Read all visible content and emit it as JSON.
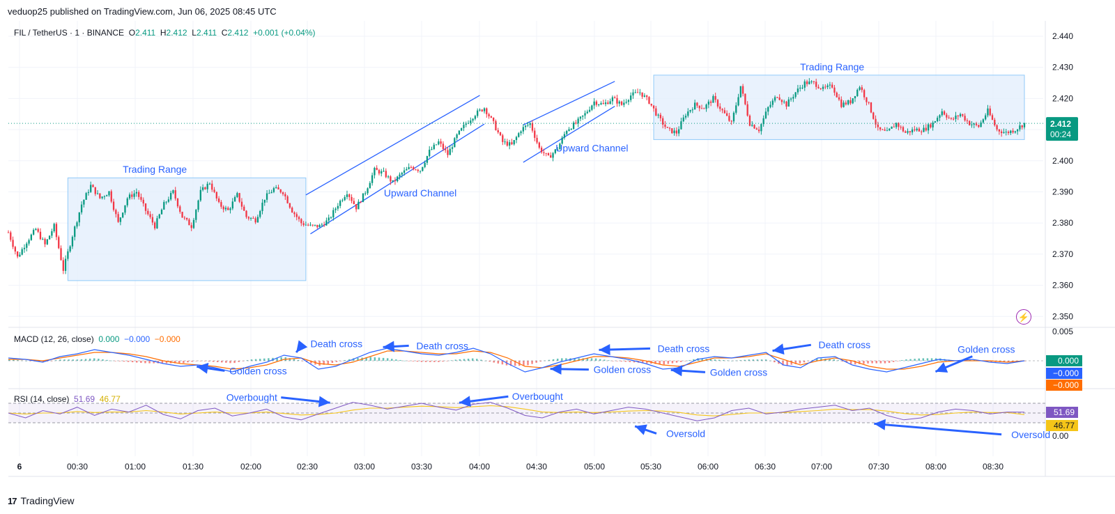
{
  "header": {
    "caption": "veduop25 published on TradingView.com, Jun 06, 2025 08:45 UTC",
    "symbol": "FIL / TetherUS · 1 · BINANCE",
    "o_label": "O",
    "o": "2.411",
    "h_label": "H",
    "h": "2.412",
    "l_label": "L",
    "l": "2.411",
    "c_label": "C",
    "c": "2.412",
    "change": "+0.001 (+0.04%)"
  },
  "footer": {
    "brand": "TradingView"
  },
  "colors": {
    "up": "#089981",
    "down": "#f23645",
    "annotation": "#2962ff",
    "range_fill": "#e3effc",
    "range_border": "#90caf9",
    "macd_line": "#2962ff",
    "signal_line": "#ff6d00",
    "rsi_line": "#7e57c2",
    "rsi_ma": "#f5c518"
  },
  "chart_data": [
    {
      "type": "candlestick",
      "title": "FIL / TetherUS · 1 · BINANCE",
      "ylim": [
        2.347,
        2.445
      ],
      "yticks": [
        "2.440",
        "2.430",
        "2.420",
        "2.410",
        "2.400",
        "2.390",
        "2.380",
        "2.370",
        "2.360",
        "2.350"
      ],
      "xticks": [
        "6",
        "00:30",
        "01:00",
        "01:30",
        "02:00",
        "02:30",
        "03:00",
        "03:30",
        "04:00",
        "04:30",
        "05:00",
        "05:30",
        "06:00",
        "06:30",
        "07:00",
        "07:30",
        "08:00",
        "08:30"
      ],
      "last_price_label": "2.412",
      "countdown_label": "00:24",
      "last_price": 2.412,
      "path_points": [
        [
          0,
          2.377
        ],
        [
          4,
          2.369
        ],
        [
          8,
          2.374
        ],
        [
          12,
          2.378
        ],
        [
          16,
          2.373
        ],
        [
          20,
          2.379
        ],
        [
          24,
          2.365
        ],
        [
          28,
          2.376
        ],
        [
          32,
          2.386
        ],
        [
          36,
          2.392
        ],
        [
          40,
          2.388
        ],
        [
          44,
          2.39
        ],
        [
          48,
          2.38
        ],
        [
          52,
          2.388
        ],
        [
          56,
          2.39
        ],
        [
          60,
          2.384
        ],
        [
          64,
          2.379
        ],
        [
          68,
          2.386
        ],
        [
          72,
          2.39
        ],
        [
          76,
          2.382
        ],
        [
          80,
          2.379
        ],
        [
          84,
          2.39
        ],
        [
          88,
          2.393
        ],
        [
          92,
          2.386
        ],
        [
          96,
          2.384
        ],
        [
          100,
          2.389
        ],
        [
          104,
          2.382
        ],
        [
          108,
          2.381
        ],
        [
          112,
          2.388
        ],
        [
          116,
          2.391
        ],
        [
          120,
          2.39
        ],
        [
          124,
          2.384
        ],
        [
          128,
          2.38
        ],
        [
          132,
          2.379
        ],
        [
          136,
          2.379
        ],
        [
          140,
          2.381
        ],
        [
          144,
          2.386
        ],
        [
          148,
          2.39
        ],
        [
          152,
          2.385
        ],
        [
          156,
          2.39
        ],
        [
          160,
          2.397
        ],
        [
          164,
          2.396
        ],
        [
          168,
          2.393
        ],
        [
          172,
          2.396
        ],
        [
          176,
          2.398
        ],
        [
          180,
          2.397
        ],
        [
          184,
          2.403
        ],
        [
          188,
          2.406
        ],
        [
          192,
          2.402
        ],
        [
          196,
          2.408
        ],
        [
          200,
          2.412
        ],
        [
          204,
          2.415
        ],
        [
          208,
          2.417
        ],
        [
          212,
          2.412
        ],
        [
          216,
          2.406
        ],
        [
          220,
          2.405
        ],
        [
          224,
          2.41
        ],
        [
          228,
          2.412
        ],
        [
          232,
          2.404
        ],
        [
          236,
          2.401
        ],
        [
          240,
          2.404
        ],
        [
          244,
          2.41
        ],
        [
          248,
          2.412
        ],
        [
          252,
          2.415
        ],
        [
          256,
          2.419
        ],
        [
          260,
          2.418
        ],
        [
          264,
          2.42
        ],
        [
          268,
          2.418
        ],
        [
          272,
          2.421
        ],
        [
          276,
          2.422
        ],
        [
          280,
          2.419
        ],
        [
          284,
          2.414
        ],
        [
          288,
          2.41
        ],
        [
          292,
          2.409
        ],
        [
          296,
          2.415
        ],
        [
          300,
          2.418
        ],
        [
          304,
          2.417
        ],
        [
          308,
          2.42
        ],
        [
          312,
          2.416
        ],
        [
          316,
          2.412
        ],
        [
          320,
          2.424
        ],
        [
          324,
          2.412
        ],
        [
          328,
          2.41
        ],
        [
          332,
          2.417
        ],
        [
          336,
          2.421
        ],
        [
          340,
          2.418
        ],
        [
          344,
          2.422
        ],
        [
          348,
          2.425
        ],
        [
          352,
          2.425
        ],
        [
          356,
          2.423
        ],
        [
          360,
          2.424
        ],
        [
          364,
          2.418
        ],
        [
          368,
          2.419
        ],
        [
          372,
          2.424
        ],
        [
          376,
          2.418
        ],
        [
          380,
          2.41
        ],
        [
          384,
          2.409
        ],
        [
          388,
          2.412
        ],
        [
          392,
          2.409
        ],
        [
          396,
          2.41
        ],
        [
          400,
          2.41
        ],
        [
          404,
          2.412
        ],
        [
          408,
          2.416
        ],
        [
          412,
          2.413
        ],
        [
          416,
          2.415
        ],
        [
          420,
          2.412
        ],
        [
          424,
          2.411
        ],
        [
          428,
          2.416
        ],
        [
          432,
          2.41
        ],
        [
          436,
          2.409
        ],
        [
          440,
          2.41
        ],
        [
          444,
          2.412
        ]
      ],
      "shapes": [
        {
          "kind": "rect",
          "name": "trading-range-left",
          "x1": 26,
          "x2": 130,
          "y1": 2.3615,
          "y2": 2.3945
        },
        {
          "kind": "rect",
          "name": "trading-range-right",
          "x1": 282,
          "x2": 444,
          "y1": 2.4068,
          "y2": 2.4275
        },
        {
          "kind": "line",
          "name": "channel-1-upper",
          "x1": 130,
          "y1": 2.389,
          "x2": 206,
          "y2": 2.421
        },
        {
          "kind": "line",
          "name": "channel-1-lower",
          "x1": 132,
          "y1": 2.3765,
          "x2": 208,
          "y2": 2.4118
        },
        {
          "kind": "line",
          "name": "channel-2-upper",
          "x1": 225,
          "y1": 2.4115,
          "x2": 265,
          "y2": 2.4255
        },
        {
          "kind": "line",
          "name": "channel-2-lower",
          "x1": 225,
          "y1": 2.3995,
          "x2": 265,
          "y2": 2.4175
        }
      ],
      "annotations": [
        {
          "text": "Trading Range",
          "x": 64,
          "y": 2.3962
        },
        {
          "text": "Upward Channel",
          "x": 180,
          "y": 2.3885
        },
        {
          "text": "Upward Channel",
          "x": 255,
          "y": 2.403
        },
        {
          "text": "Trading Range",
          "x": 360,
          "y": 2.429
        }
      ]
    },
    {
      "type": "line",
      "title": "MACD (12, 26, close)",
      "legend_values": [
        "0.000",
        "−0.000",
        "−0.000"
      ],
      "ytick": "0.005",
      "badges": [
        "0.000",
        "−0.000",
        "−0.000"
      ],
      "series": [
        {
          "name": "MACD",
          "values": [
            0.2,
            0.1,
            -0.1,
            0.3,
            0.5,
            0.8,
            0.6,
            0.4,
            0.1,
            -0.2,
            -0.4,
            -0.3,
            -0.5,
            -0.8,
            -0.4,
            -0.1,
            0.4,
            0.2,
            -0.6,
            -0.4,
            0.1,
            0.6,
            0.9,
            0.7,
            0.5,
            0.4,
            0.6,
            0.9,
            0.5,
            -0.2,
            -0.8,
            -0.5,
            -0.1,
            0.2,
            0.5,
            0.3,
            0.1,
            -0.2,
            -0.6,
            -0.5,
            0.1,
            0.3,
            0.2,
            0.4,
            0.6,
            -0.3,
            -0.5,
            0.2,
            0.3,
            -0.3,
            -0.6,
            -0.8,
            -0.5,
            -0.2,
            0.1,
            0.0,
            0.1,
            -0.1,
            -0.2,
            0.0
          ]
        },
        {
          "name": "Signal",
          "values": [
            0.1,
            0.1,
            0.0,
            0.2,
            0.4,
            0.6,
            0.6,
            0.5,
            0.3,
            0.0,
            -0.2,
            -0.3,
            -0.4,
            -0.6,
            -0.5,
            -0.3,
            0.1,
            0.2,
            -0.2,
            -0.3,
            -0.1,
            0.3,
            0.7,
            0.7,
            0.6,
            0.5,
            0.5,
            0.7,
            0.6,
            0.2,
            -0.4,
            -0.5,
            -0.3,
            0.0,
            0.3,
            0.3,
            0.2,
            0.0,
            -0.3,
            -0.4,
            -0.1,
            0.2,
            0.2,
            0.3,
            0.5,
            0.1,
            -0.3,
            0.0,
            0.2,
            0.0,
            -0.4,
            -0.6,
            -0.6,
            -0.4,
            -0.1,
            0.0,
            0.0,
            0.0,
            -0.1,
            0.0
          ]
        }
      ],
      "annotations": [
        {
          "text": "Death cross",
          "x": 155,
          "y": 1.22,
          "ax": 136,
          "ay": 0.6
        },
        {
          "text": "Death cross",
          "x": 205,
          "y": 1.08,
          "ax": 177,
          "ay": 0.98
        },
        {
          "text": "Death cross",
          "x": 319,
          "y": 0.88,
          "ax": 279,
          "ay": 0.78
        },
        {
          "text": "Death cross",
          "x": 395,
          "y": 1.14,
          "ax": 361,
          "ay": 0.72
        },
        {
          "text": "Golden cross",
          "x": 118,
          "y": -0.72,
          "ax": 89,
          "ay": -0.42
        },
        {
          "text": "Golden cross",
          "x": 290,
          "y": -0.63,
          "ax": 256,
          "ay": -0.58
        },
        {
          "text": "Golden cross",
          "x": 345,
          "y": -0.82,
          "ax": 313,
          "ay": -0.66
        },
        {
          "text": "Golden cross",
          "x": 462,
          "y": 0.82,
          "ax": 438,
          "ay": -0.78
        }
      ]
    },
    {
      "type": "line",
      "title": "RSI (14, close)",
      "legend_values": [
        "51.69",
        "46.77"
      ],
      "ytick": "0.00",
      "badges": [
        "51.69",
        "46.77"
      ],
      "bands": [
        70,
        30
      ],
      "series": [
        {
          "name": "RSI",
          "values": [
            50,
            40,
            55,
            48,
            62,
            45,
            58,
            52,
            66,
            47,
            38,
            55,
            60,
            44,
            50,
            58,
            42,
            36,
            48,
            60,
            72,
            66,
            58,
            64,
            70,
            62,
            56,
            68,
            72,
            60,
            45,
            40,
            52,
            58,
            48,
            55,
            62,
            58,
            50,
            42,
            34,
            40,
            55,
            60,
            48,
            52,
            58,
            62,
            66,
            55,
            60,
            45,
            36,
            40,
            52,
            58,
            55,
            48,
            52,
            51.69
          ]
        },
        {
          "name": "RSI-based MA",
          "values": [
            50,
            48,
            50,
            50,
            53,
            51,
            52,
            52,
            55,
            52,
            48,
            50,
            52,
            50,
            50,
            52,
            49,
            46,
            47,
            50,
            56,
            60,
            60,
            62,
            64,
            63,
            61,
            63,
            65,
            63,
            58,
            52,
            51,
            52,
            51,
            52,
            54,
            55,
            54,
            51,
            46,
            44,
            47,
            50,
            50,
            51,
            53,
            55,
            58,
            57,
            57,
            54,
            49,
            46,
            47,
            50,
            52,
            51,
            51,
            46.77
          ]
        }
      ],
      "annotations": [
        {
          "text": "Overbought",
          "x": 115,
          "y": 82,
          "ax": 152,
          "ay": 71
        },
        {
          "text": "Overbought",
          "x": 250,
          "y": 84,
          "ax": 213,
          "ay": 71
        },
        {
          "text": "Oversold",
          "x": 320,
          "y": 8,
          "ax": 296,
          "ay": 23
        },
        {
          "text": "Oversold",
          "x": 483,
          "y": 6,
          "ax": 409,
          "ay": 28
        }
      ]
    }
  ]
}
